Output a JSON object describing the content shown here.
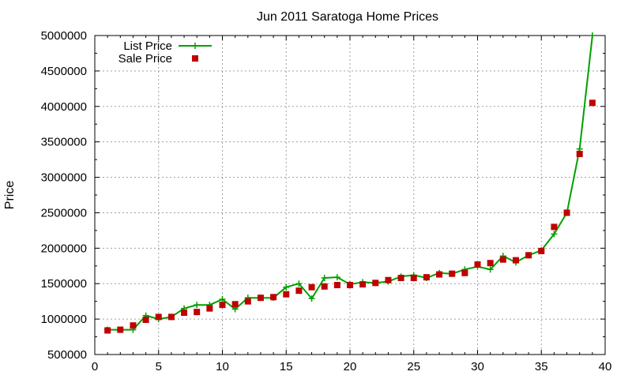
{
  "chart_data": {
    "type": "line",
    "title": "Jun 2011 Saratoga Home Prices",
    "xlabel": "",
    "ylabel": "Price",
    "xlim": [
      0,
      40
    ],
    "ylim": [
      500000,
      5000000
    ],
    "xticks": [
      0,
      5,
      10,
      15,
      20,
      25,
      30,
      35,
      40
    ],
    "yticks": [
      500000,
      1000000,
      1500000,
      2000000,
      2500000,
      3000000,
      3500000,
      4000000,
      4500000,
      5000000
    ],
    "grid": true,
    "legend_position": "top-left",
    "series": [
      {
        "name": "List Price",
        "style": "line+cross",
        "color": "#00a000",
        "x": [
          1,
          2,
          3,
          4,
          5,
          6,
          7,
          8,
          9,
          10,
          11,
          12,
          13,
          14,
          15,
          16,
          17,
          18,
          19,
          20,
          21,
          22,
          23,
          24,
          25,
          26,
          27,
          28,
          29,
          30,
          31,
          32,
          33,
          34,
          35,
          36,
          37,
          38,
          39
        ],
        "y": [
          850000,
          850000,
          850000,
          1050000,
          1000000,
          1030000,
          1150000,
          1200000,
          1200000,
          1280000,
          1140000,
          1300000,
          1300000,
          1300000,
          1450000,
          1500000,
          1290000,
          1580000,
          1590000,
          1490000,
          1520000,
          1510000,
          1530000,
          1600000,
          1620000,
          1580000,
          1650000,
          1640000,
          1700000,
          1740000,
          1700000,
          1890000,
          1800000,
          1900000,
          1970000,
          2200000,
          2500000,
          3400000,
          5000000
        ]
      },
      {
        "name": "Sale Price",
        "style": "points",
        "color": "#c00000",
        "x": [
          1,
          2,
          3,
          4,
          5,
          6,
          7,
          8,
          9,
          10,
          11,
          12,
          13,
          14,
          15,
          16,
          17,
          18,
          19,
          20,
          21,
          22,
          23,
          24,
          25,
          26,
          27,
          28,
          29,
          30,
          31,
          32,
          33,
          34,
          35,
          36,
          37,
          38,
          39
        ],
        "y": [
          840000,
          850000,
          910000,
          990000,
          1030000,
          1030000,
          1090000,
          1100000,
          1150000,
          1200000,
          1210000,
          1250000,
          1300000,
          1310000,
          1350000,
          1400000,
          1450000,
          1460000,
          1480000,
          1480000,
          1490000,
          1510000,
          1550000,
          1580000,
          1580000,
          1590000,
          1630000,
          1640000,
          1650000,
          1770000,
          1790000,
          1840000,
          1830000,
          1900000,
          1960000,
          2300000,
          2500000,
          3330000,
          4050000
        ]
      }
    ]
  }
}
